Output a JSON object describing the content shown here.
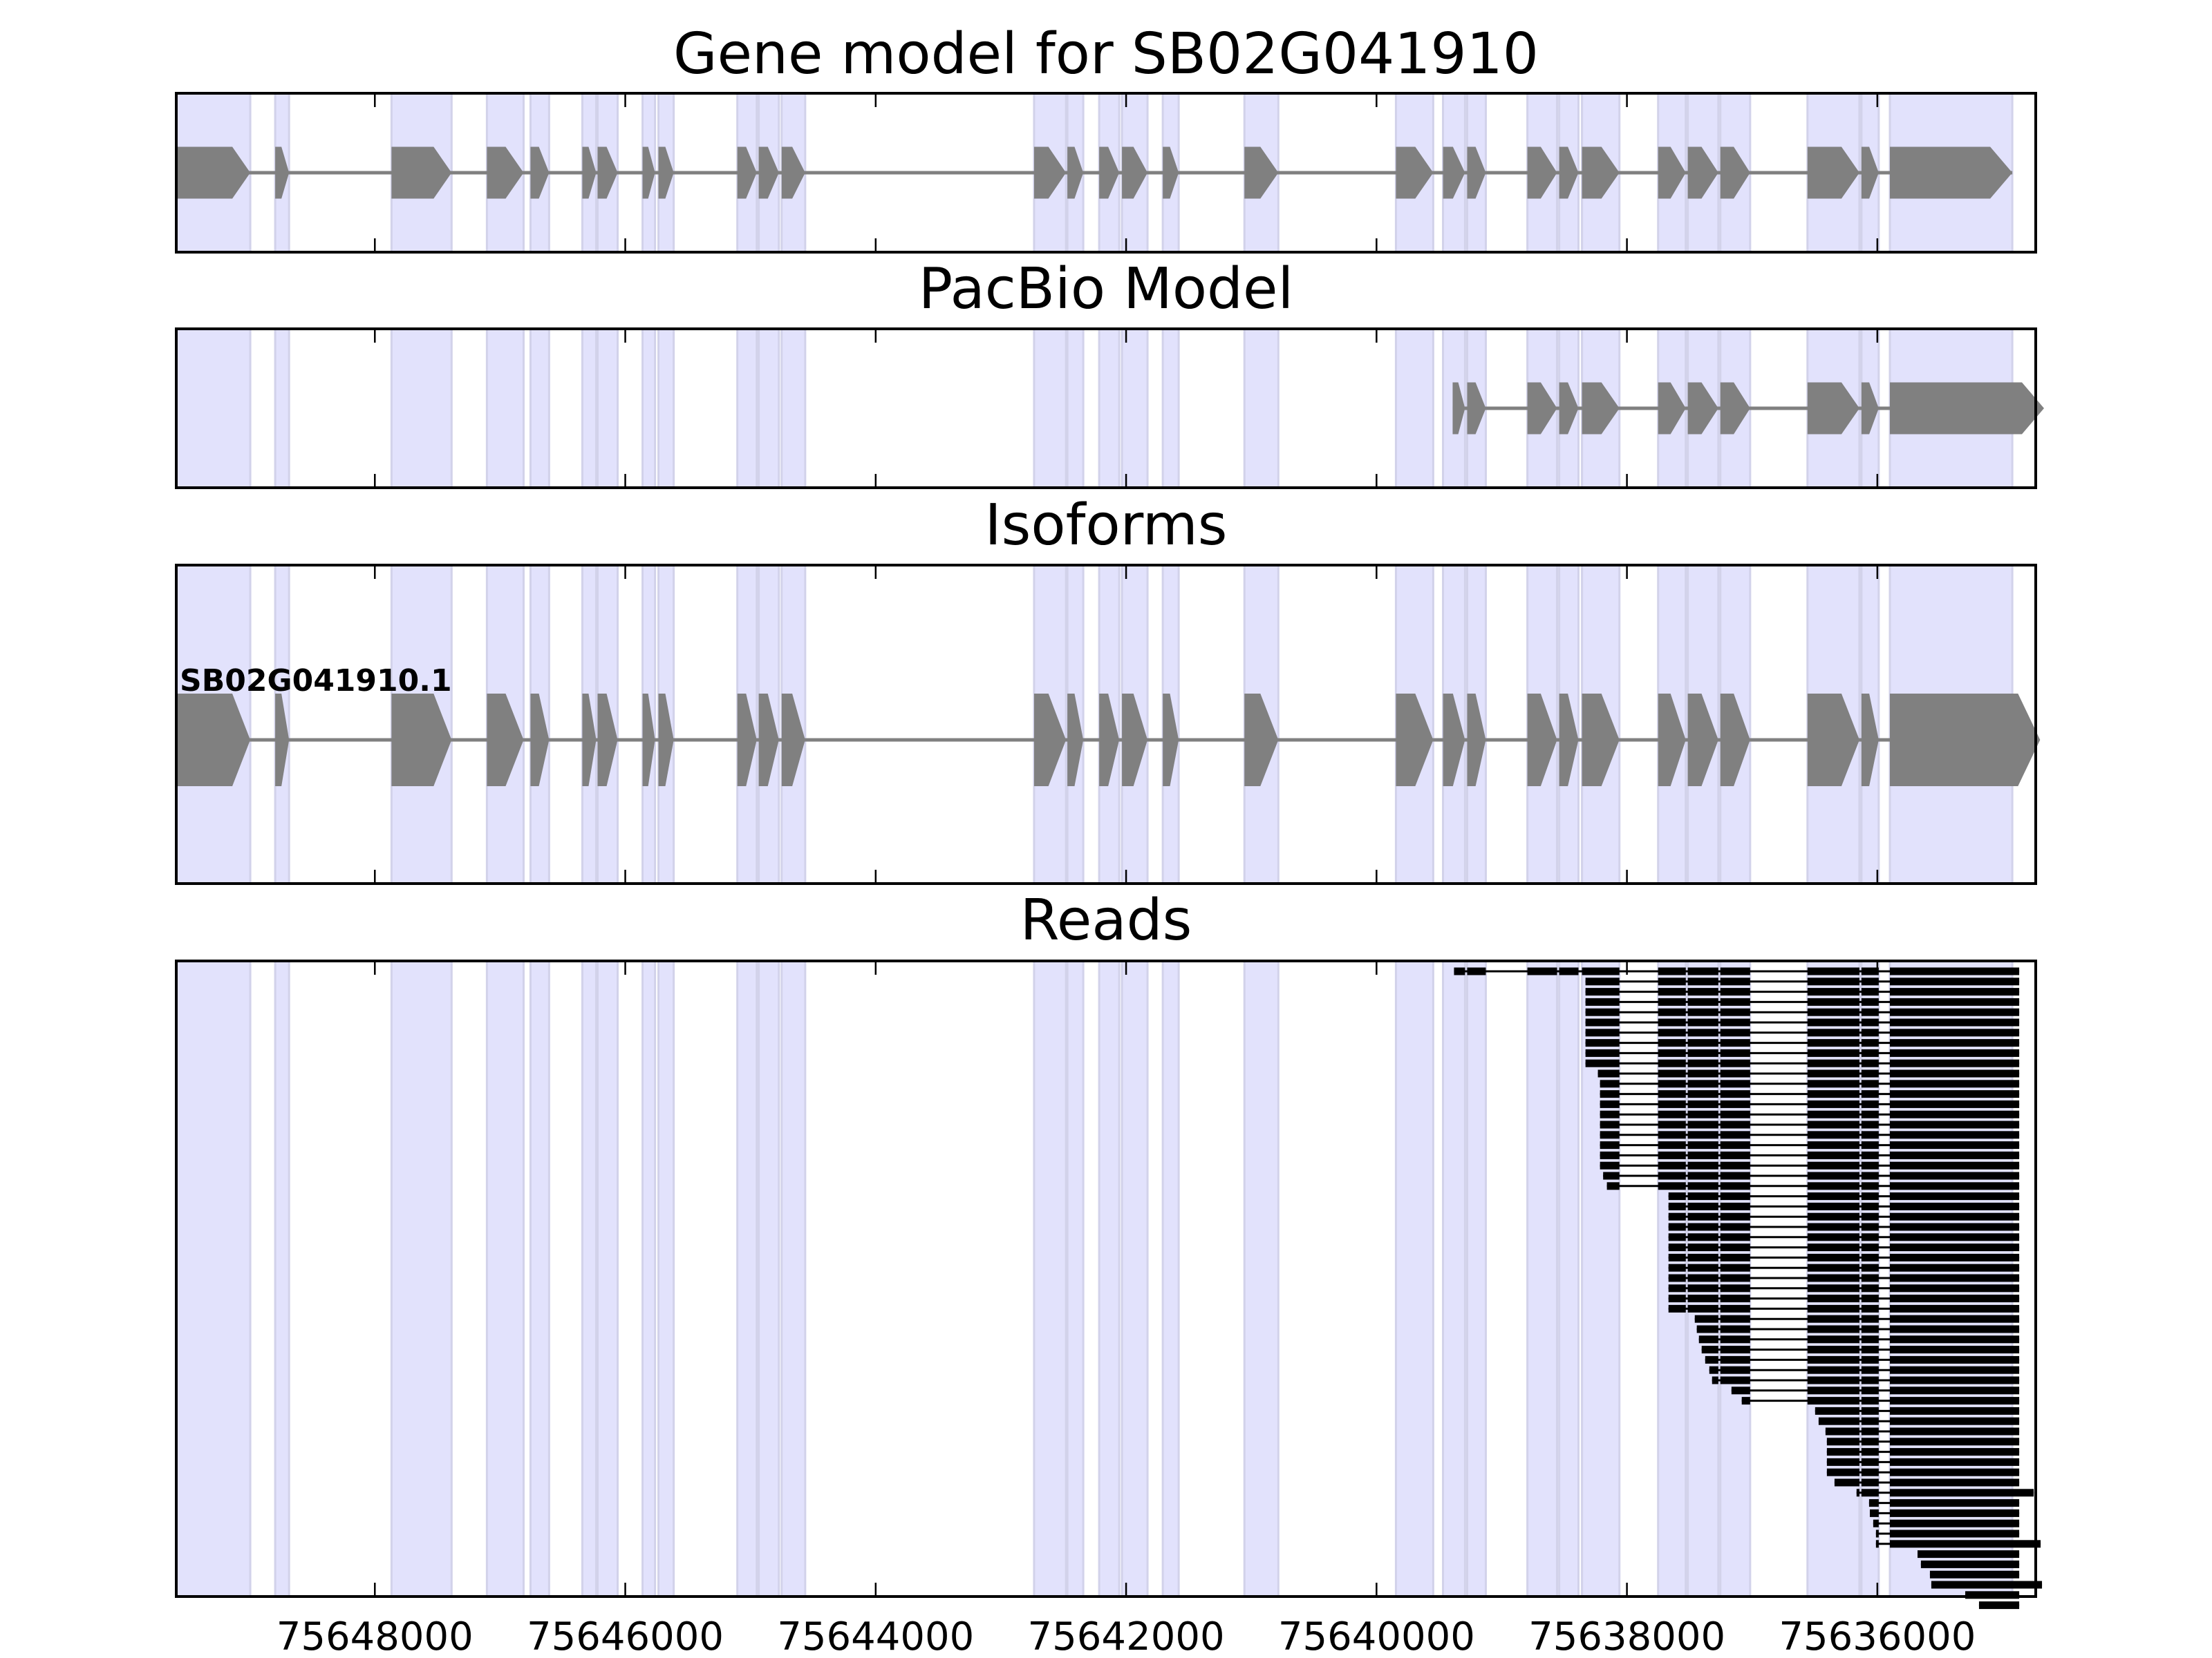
{
  "chart_data": {
    "type": "gene-track",
    "xlim": [
      75649586,
      75634735
    ],
    "x_ticks": [
      75648000,
      75646000,
      75644000,
      75642000,
      75640000,
      75638000,
      75636000
    ],
    "x_tick_labels": [
      "75648000",
      "75646000",
      "75644000",
      "75642000",
      "75640000",
      "75638000",
      "75636000"
    ],
    "colors": {
      "exon": "#808080",
      "highlight": "#e2e2fc",
      "highlight_edge": "#d2d2ea",
      "read": "#000000",
      "frame": "#000000"
    },
    "panels": [
      {
        "title": "Gene model for SB02G041910",
        "kind": "gene_model"
      },
      {
        "title": "PacBio Model",
        "kind": "pacbio"
      },
      {
        "title": "Isoforms",
        "kind": "isoforms",
        "isoform_labels": [
          "SB02G041910.1"
        ]
      },
      {
        "title": "Reads",
        "kind": "reads"
      }
    ],
    "gene_exons": [
      [
        75649586,
        75648995
      ],
      [
        75648796,
        75648685
      ],
      [
        75647867,
        75647387
      ],
      [
        75647105,
        75646812
      ],
      [
        75646757,
        75646608
      ],
      [
        75646343,
        75646232
      ],
      [
        75646221,
        75646061
      ],
      [
        75645862,
        75645762
      ],
      [
        75645735,
        75645613
      ],
      [
        75645105,
        75644950
      ],
      [
        75644934,
        75644773
      ],
      [
        75644751,
        75644563
      ],
      [
        75642735,
        75642480
      ],
      [
        75642469,
        75642342
      ],
      [
        75642215,
        75642055
      ],
      [
        75642033,
        75641829
      ],
      [
        75641707,
        75641580
      ],
      [
        75641055,
        75640784
      ],
      [
        75639845,
        75639547
      ],
      [
        75639469,
        75639293
      ],
      [
        75639276,
        75639127
      ],
      [
        75638795,
        75638558
      ],
      [
        75638541,
        75638387
      ],
      [
        75638359,
        75638060
      ],
      [
        75637751,
        75637530
      ],
      [
        75637514,
        75637270
      ],
      [
        75637254,
        75637016
      ],
      [
        75636558,
        75636143
      ],
      [
        75636127,
        75635989
      ],
      [
        75635900,
        75634922
      ]
    ],
    "pacbio_exons": [
      [
        75639392,
        75639293
      ],
      [
        75639276,
        75639127
      ],
      [
        75638795,
        75638558
      ],
      [
        75638541,
        75638387
      ],
      [
        75638359,
        75638060
      ],
      [
        75637751,
        75637530
      ],
      [
        75637514,
        75637270
      ],
      [
        75637254,
        75637016
      ],
      [
        75636558,
        75636143
      ],
      [
        75636127,
        75635989
      ],
      [
        75635900,
        75634668
      ]
    ],
    "isoform_last_exon_end": 75634700,
    "reads": [
      [
        75639381,
        75634867
      ],
      [
        75638331,
        75634867
      ],
      [
        75638331,
        75634867
      ],
      [
        75638331,
        75634867
      ],
      [
        75638331,
        75634867
      ],
      [
        75638331,
        75634867
      ],
      [
        75638331,
        75634867
      ],
      [
        75638331,
        75634867
      ],
      [
        75638331,
        75634867
      ],
      [
        75638331,
        75634867
      ],
      [
        75638232,
        75634867
      ],
      [
        75638215,
        75634867
      ],
      [
        75638215,
        75634867
      ],
      [
        75638215,
        75634867
      ],
      [
        75638215,
        75634867
      ],
      [
        75638215,
        75634867
      ],
      [
        75638215,
        75634867
      ],
      [
        75638215,
        75634867
      ],
      [
        75638215,
        75634867
      ],
      [
        75638215,
        75634867
      ],
      [
        75638190,
        75634867
      ],
      [
        75638160,
        75634867
      ],
      [
        75637668,
        75634867
      ],
      [
        75637668,
        75634867
      ],
      [
        75637668,
        75634867
      ],
      [
        75637668,
        75634867
      ],
      [
        75637668,
        75634867
      ],
      [
        75637668,
        75634867
      ],
      [
        75637668,
        75634867
      ],
      [
        75637668,
        75634867
      ],
      [
        75637668,
        75634867
      ],
      [
        75637668,
        75634867
      ],
      [
        75637668,
        75634867
      ],
      [
        75637668,
        75634867
      ],
      [
        75637458,
        75634867
      ],
      [
        75637442,
        75634867
      ],
      [
        75637425,
        75634867
      ],
      [
        75637403,
        75634867
      ],
      [
        75637375,
        75634867
      ],
      [
        75637342,
        75634867
      ],
      [
        75637320,
        75634867
      ],
      [
        75637165,
        75634867
      ],
      [
        75637083,
        75634867
      ],
      [
        75636497,
        75634867
      ],
      [
        75636469,
        75634867
      ],
      [
        75636414,
        75634867
      ],
      [
        75636403,
        75634867
      ],
      [
        75636403,
        75634867
      ],
      [
        75636403,
        75634867
      ],
      [
        75636403,
        75634867
      ],
      [
        75636342,
        75634867
      ],
      [
        75636166,
        75634751
      ],
      [
        75636066,
        75634867
      ],
      [
        75636060,
        75634867
      ],
      [
        75636033,
        75634867
      ],
      [
        75636011,
        75634867
      ],
      [
        75636011,
        75634696
      ],
      [
        75635679,
        75634867
      ],
      [
        75635652,
        75634867
      ],
      [
        75635580,
        75634867
      ],
      [
        75635569,
        75634685
      ],
      [
        75635298,
        75634867
      ],
      [
        75635188,
        75634867
      ]
    ]
  }
}
